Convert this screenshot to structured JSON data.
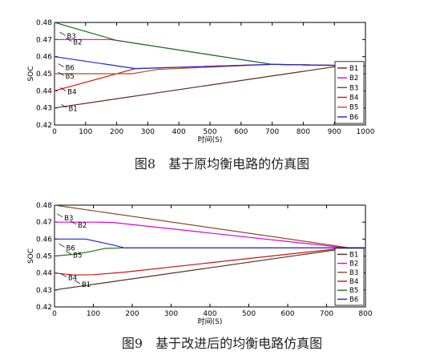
{
  "chart_data": [
    {
      "type": "line",
      "caption": "图8　基于原均衡电路的仿真图",
      "xlabel": "时间(S)",
      "ylabel": "SOC",
      "xlim": [
        0,
        1000
      ],
      "ylim": [
        0.42,
        0.48
      ],
      "xticks": [
        "0",
        "100",
        "200",
        "300",
        "400",
        "500",
        "600",
        "700",
        "800",
        "900",
        "1000"
      ],
      "yticks": [
        "0.42",
        "0.43",
        "0.44",
        "0.45",
        "0.46",
        "0.47",
        "0.48"
      ],
      "legend": "bottom-right",
      "series": [
        {
          "name": "B1",
          "color": "#5a2b1a",
          "points": [
            [
              0,
              0.43
            ],
            [
              920,
              0.4546
            ],
            [
              1000,
              0.4546
            ]
          ]
        },
        {
          "name": "B2",
          "color": "#dd00dd",
          "points": [
            [
              0,
              0.47
            ],
            [
              180,
              0.47
            ],
            [
              700,
              0.4555
            ],
            [
              1000,
              0.4546
            ]
          ]
        },
        {
          "name": "B3",
          "color": "#1a7a1a",
          "points": [
            [
              0,
              0.48
            ],
            [
              200,
              0.4695
            ],
            [
              700,
              0.4555
            ],
            [
              1000,
              0.4546
            ]
          ]
        },
        {
          "name": "B4",
          "color": "#dd1111",
          "points": [
            [
              0,
              0.44
            ],
            [
              260,
              0.453
            ],
            [
              700,
              0.4555
            ],
            [
              1000,
              0.4546
            ]
          ]
        },
        {
          "name": "B5",
          "color": "#b8520f",
          "points": [
            [
              0,
              0.45
            ],
            [
              250,
              0.45
            ],
            [
              330,
              0.4525
            ],
            [
              700,
              0.4555
            ],
            [
              1000,
              0.4546
            ]
          ]
        },
        {
          "name": "B6",
          "color": "#2222dd",
          "points": [
            [
              0,
              0.46
            ],
            [
              260,
              0.453
            ],
            [
              700,
              0.4555
            ],
            [
              1000,
              0.4546
            ]
          ]
        }
      ],
      "annotations": [
        {
          "text": "B3",
          "x": 40,
          "y": 0.472
        },
        {
          "text": "B2",
          "x": 60,
          "y": 0.4685
        },
        {
          "text": "B6",
          "x": 35,
          "y": 0.4535
        },
        {
          "text": "B5",
          "x": 35,
          "y": 0.4485
        },
        {
          "text": "B4",
          "x": 42,
          "y": 0.4395
        },
        {
          "text": "B1",
          "x": 45,
          "y": 0.4297
        }
      ]
    },
    {
      "type": "line",
      "caption": "图9　基于改进后的均衡电路仿真图",
      "xlabel": "时间(S)",
      "ylabel": "SOC",
      "xlim": [
        0,
        800
      ],
      "ylim": [
        0.42,
        0.48
      ],
      "xticks": [
        "0",
        "100",
        "200",
        "300",
        "400",
        "500",
        "600",
        "700",
        "800"
      ],
      "yticks": [
        "0.42",
        "0.43",
        "0.44",
        "0.45",
        "0.46",
        "0.47",
        "0.48"
      ],
      "legend": "bottom-right",
      "series": [
        {
          "name": "B1",
          "color": "#5a2b1a",
          "points": [
            [
              0,
              0.43
            ],
            [
              760,
              0.4548
            ],
            [
              800,
              0.4548
            ]
          ]
        },
        {
          "name": "B2",
          "color": "#dd00dd",
          "points": [
            [
              0,
              0.47
            ],
            [
              100,
              0.47
            ],
            [
              150,
              0.4698
            ],
            [
              750,
              0.4548
            ],
            [
              800,
              0.4548
            ]
          ]
        },
        {
          "name": "B3",
          "color": "#8a4a2a",
          "points": [
            [
              0,
              0.48
            ],
            [
              760,
              0.4548
            ],
            [
              800,
              0.4548
            ]
          ]
        },
        {
          "name": "B4",
          "color": "#cc1111",
          "points": [
            [
              0,
              0.44
            ],
            [
              50,
              0.4388
            ],
            [
              100,
              0.439
            ],
            [
              180,
              0.4405
            ],
            [
              750,
              0.4548
            ],
            [
              800,
              0.4548
            ]
          ]
        },
        {
          "name": "B5",
          "color": "#1a7a1a",
          "points": [
            [
              0,
              0.45
            ],
            [
              50,
              0.451
            ],
            [
              90,
              0.4525
            ],
            [
              130,
              0.4545
            ],
            [
              180,
              0.4548
            ],
            [
              800,
              0.4548
            ]
          ]
        },
        {
          "name": "B6",
          "color": "#2222dd",
          "points": [
            [
              0,
              0.46
            ],
            [
              80,
              0.46
            ],
            [
              150,
              0.4565
            ],
            [
              180,
              0.4548
            ],
            [
              800,
              0.4548
            ]
          ]
        }
      ],
      "annotations": [
        {
          "text": "B3",
          "x": 25,
          "y": 0.4725
        },
        {
          "text": "B2",
          "x": 60,
          "y": 0.4682
        },
        {
          "text": "B6",
          "x": 30,
          "y": 0.4548
        },
        {
          "text": "B5",
          "x": 48,
          "y": 0.4505
        },
        {
          "text": "B4",
          "x": 35,
          "y": 0.4372
        },
        {
          "text": "B1",
          "x": 70,
          "y": 0.4332
        }
      ]
    }
  ]
}
